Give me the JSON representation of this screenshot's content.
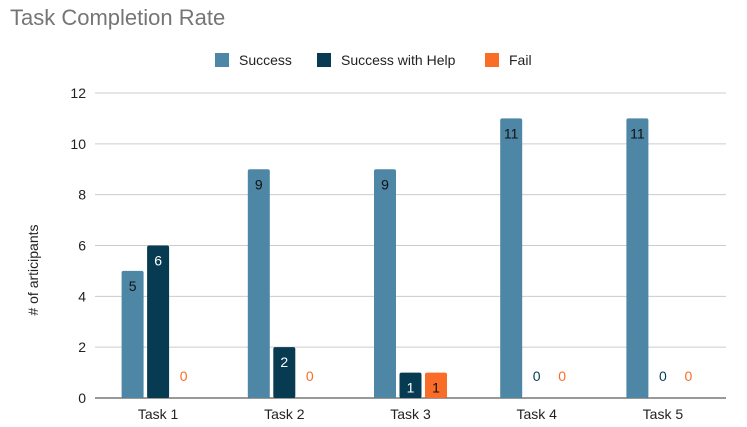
{
  "chart_data": {
    "type": "bar",
    "title": "Task Completion Rate",
    "xlabel": "",
    "ylabel": "# of articipants",
    "ylim": [
      0,
      12
    ],
    "yticks": [
      0,
      2,
      4,
      6,
      8,
      10,
      12
    ],
    "grid": true,
    "legend_position": "top",
    "categories": [
      "Task 1",
      "Task 2",
      "Task 3",
      "Task 4",
      "Task 5"
    ],
    "series": [
      {
        "name": "Success",
        "color": "#4e87a6",
        "values": [
          5,
          9,
          9,
          11,
          11
        ]
      },
      {
        "name": "Success with Help",
        "color": "#073b52",
        "values": [
          6,
          2,
          1,
          0,
          0
        ]
      },
      {
        "name": "Fail",
        "color": "#f96d28",
        "values": [
          0,
          0,
          1,
          0,
          0
        ]
      }
    ]
  }
}
